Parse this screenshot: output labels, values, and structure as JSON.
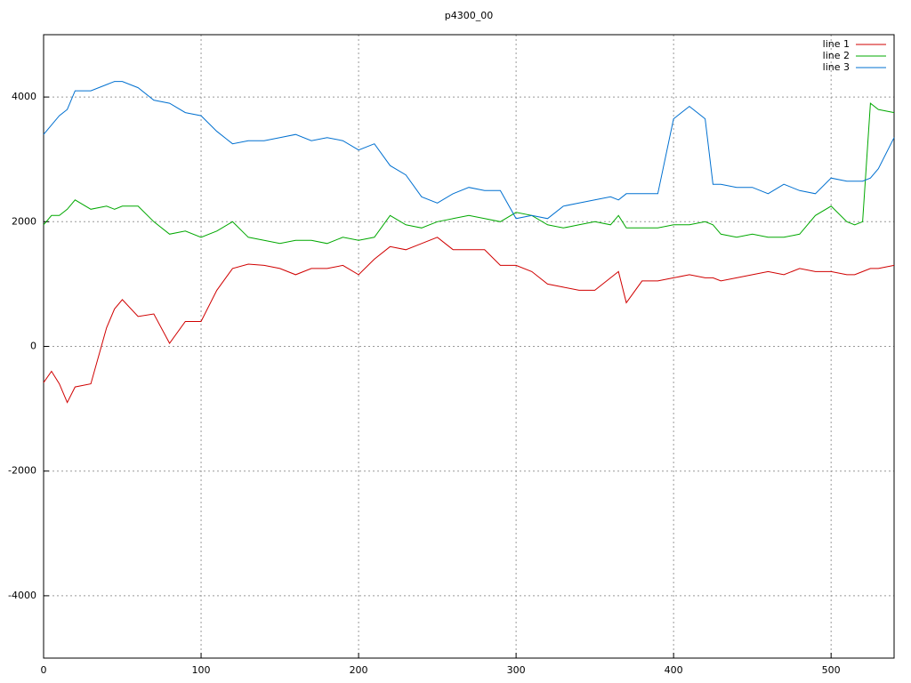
{
  "chart_data": {
    "type": "line",
    "title": "p4300_00",
    "x": [
      0,
      5,
      10,
      15,
      20,
      30,
      40,
      45,
      50,
      60,
      70,
      80,
      90,
      100,
      110,
      120,
      130,
      140,
      150,
      160,
      170,
      180,
      190,
      200,
      210,
      220,
      230,
      240,
      250,
      260,
      270,
      280,
      290,
      300,
      310,
      320,
      330,
      340,
      350,
      360,
      365,
      370,
      380,
      390,
      400,
      410,
      420,
      425,
      430,
      440,
      450,
      460,
      470,
      480,
      490,
      500,
      510,
      515,
      520,
      525,
      530,
      540
    ],
    "series": [
      {
        "name": "line 1",
        "color": "#d00000",
        "values": [
          -580,
          -400,
          -600,
          -900,
          -650,
          -600,
          300,
          600,
          750,
          480,
          520,
          50,
          400,
          400,
          900,
          1250,
          1320,
          1300,
          1250,
          1150,
          1250,
          1250,
          1300,
          1150,
          1400,
          1600,
          1550,
          1650,
          1750,
          1550,
          1550,
          1550,
          1300,
          1300,
          1200,
          1000,
          950,
          900,
          900,
          1100,
          1200,
          700,
          1050,
          1050,
          1100,
          1150,
          1100,
          1100,
          1050,
          1100,
          1150,
          1200,
          1150,
          1250,
          1200,
          1200,
          1150,
          1150,
          1200,
          1250,
          1250,
          1300
        ]
      },
      {
        "name": "line 2",
        "color": "#00a800",
        "values": [
          1950,
          2100,
          2100,
          2200,
          2350,
          2200,
          2250,
          2200,
          2250,
          2250,
          2000,
          1800,
          1850,
          1750,
          1850,
          2000,
          1750,
          1700,
          1650,
          1700,
          1700,
          1650,
          1750,
          1700,
          1750,
          2100,
          1950,
          1900,
          2000,
          2050,
          2100,
          2050,
          2000,
          2150,
          2100,
          1950,
          1900,
          1950,
          2000,
          1950,
          2100,
          1900,
          1900,
          1900,
          1950,
          1950,
          2000,
          1950,
          1800,
          1750,
          1800,
          1750,
          1750,
          1800,
          2100,
          2250,
          2000,
          1950,
          2000,
          3900,
          3800,
          3750
        ]
      },
      {
        "name": "line 3",
        "color": "#0070d0",
        "values": [
          3400,
          3550,
          3700,
          3800,
          4100,
          4100,
          4200,
          4250,
          4250,
          4150,
          3950,
          3900,
          3750,
          3700,
          3450,
          3250,
          3300,
          3300,
          3350,
          3400,
          3300,
          3350,
          3300,
          3150,
          3250,
          2900,
          2750,
          2400,
          2300,
          2450,
          2550,
          2500,
          2500,
          2050,
          2100,
          2050,
          2250,
          2300,
          2350,
          2400,
          2350,
          2450,
          2450,
          2450,
          3650,
          3850,
          3650,
          2600,
          2600,
          2550,
          2550,
          2450,
          2600,
          2500,
          2450,
          2700,
          2650,
          2650,
          2650,
          2700,
          2850,
          3350
        ]
      }
    ],
    "xlim": [
      0,
      540
    ],
    "ylim": [
      -5000,
      5000
    ],
    "xticks": [
      0,
      100,
      200,
      300,
      400,
      500
    ],
    "yticks": [
      -4000,
      -2000,
      0,
      2000,
      4000
    ],
    "grid": true,
    "legend": "top-right"
  }
}
